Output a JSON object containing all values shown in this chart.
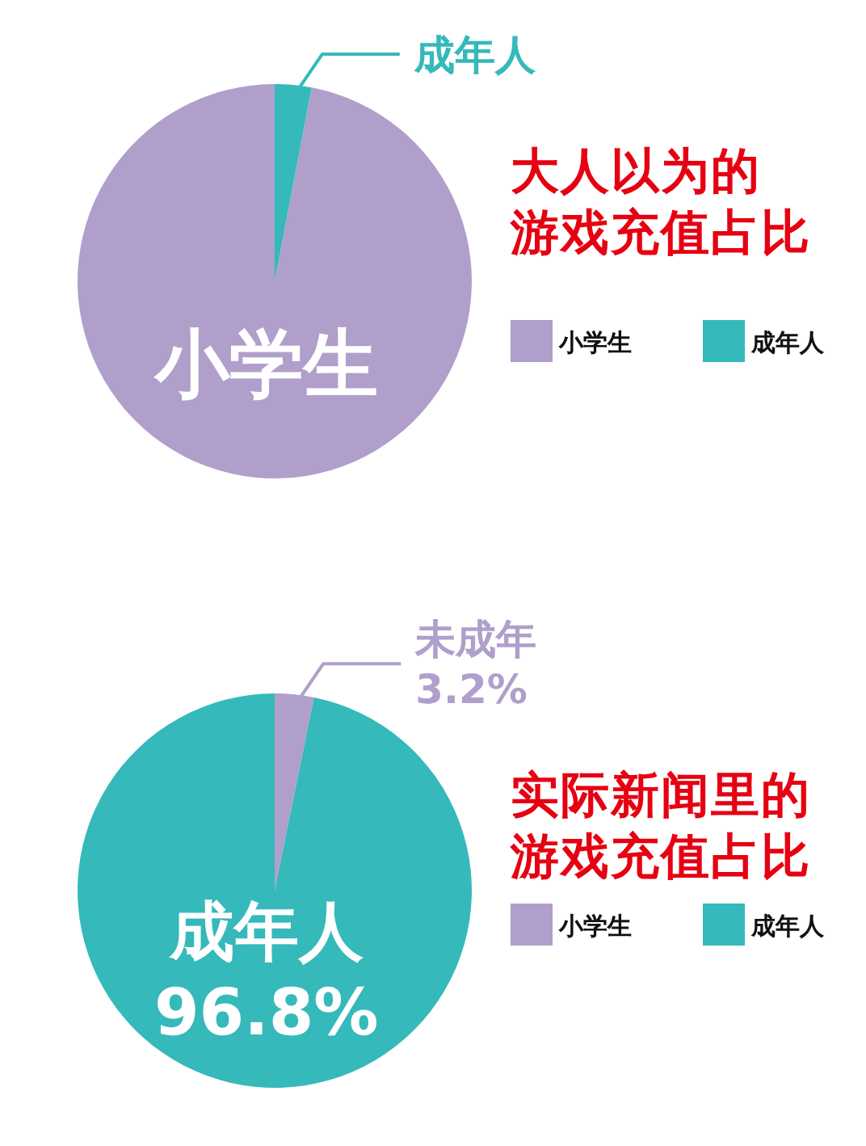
{
  "chart_data": [
    {
      "type": "pie",
      "title": "大人以为的游戏充值占比",
      "categories": [
        "小学生",
        "成年人"
      ],
      "values": [
        97,
        3
      ],
      "colors": [
        "#b09fcb",
        "#35b9bb"
      ],
      "value_labels": [
        "小学生",
        "成年人"
      ],
      "legend": "right"
    },
    {
      "type": "pie",
      "title": "实际新闻里的游戏充值占比",
      "categories": [
        "小学生",
        "成年人"
      ],
      "values": [
        3.2,
        96.8
      ],
      "colors": [
        "#b09fcb",
        "#35b9bb"
      ],
      "value_labels": [
        "未成年\n3.2%",
        "成年人\n96.8%"
      ],
      "legend": "right"
    }
  ]
}
